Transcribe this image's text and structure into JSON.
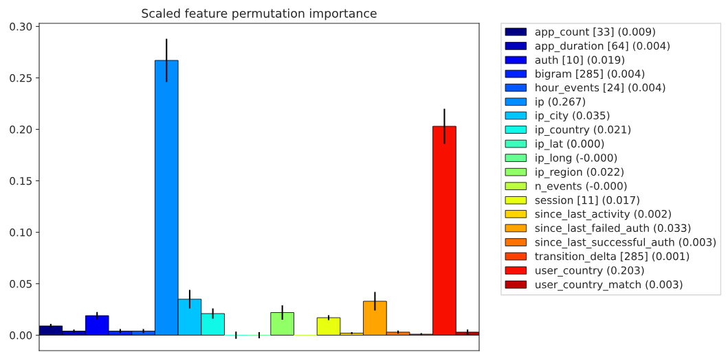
{
  "chart_data": {
    "type": "bar",
    "title": "Scaled feature permutation importance",
    "categories": [
      null,
      null,
      null,
      null,
      null,
      null,
      null,
      null,
      null,
      null,
      null,
      null,
      null,
      null,
      null,
      null,
      null,
      null,
      null
    ],
    "series": [
      {
        "name": "app_count [33] (0.009)",
        "color": "#000080",
        "values": [
          0.009,
          null,
          null,
          null,
          null,
          null,
          null,
          null,
          null,
          null,
          null,
          null,
          null,
          null,
          null,
          null,
          null,
          null,
          null
        ],
        "errors": [
          0.002,
          null,
          null,
          null,
          null,
          null,
          null,
          null,
          null,
          null,
          null,
          null,
          null,
          null,
          null,
          null,
          null,
          null,
          null
        ]
      },
      {
        "name": "app_duration [64] (0.004)",
        "color": "#0000bd",
        "values": [
          null,
          0.004,
          null,
          null,
          null,
          null,
          null,
          null,
          null,
          null,
          null,
          null,
          null,
          null,
          null,
          null,
          null,
          null,
          null
        ],
        "errors": [
          null,
          0.0015,
          null,
          null,
          null,
          null,
          null,
          null,
          null,
          null,
          null,
          null,
          null,
          null,
          null,
          null,
          null,
          null,
          null
        ]
      },
      {
        "name": "auth [10] (0.019)",
        "color": "#0000fa",
        "values": [
          null,
          null,
          0.019,
          null,
          null,
          null,
          null,
          null,
          null,
          null,
          null,
          null,
          null,
          null,
          null,
          null,
          null,
          null,
          null
        ],
        "errors": [
          null,
          null,
          0.0035,
          null,
          null,
          null,
          null,
          null,
          null,
          null,
          null,
          null,
          null,
          null,
          null,
          null,
          null,
          null,
          null
        ]
      },
      {
        "name": "bigram [285] (0.004)",
        "color": "#0022ff",
        "values": [
          null,
          null,
          null,
          0.004,
          null,
          null,
          null,
          null,
          null,
          null,
          null,
          null,
          null,
          null,
          null,
          null,
          null,
          null,
          null
        ],
        "errors": [
          null,
          null,
          null,
          0.002,
          null,
          null,
          null,
          null,
          null,
          null,
          null,
          null,
          null,
          null,
          null,
          null,
          null,
          null,
          null
        ]
      },
      {
        "name": "hour_events [24] (0.004)",
        "color": "#0057ff",
        "values": [
          null,
          null,
          null,
          null,
          0.004,
          null,
          null,
          null,
          null,
          null,
          null,
          null,
          null,
          null,
          null,
          null,
          null,
          null,
          null
        ],
        "errors": [
          null,
          null,
          null,
          null,
          0.002,
          null,
          null,
          null,
          null,
          null,
          null,
          null,
          null,
          null,
          null,
          null,
          null,
          null,
          null
        ]
      },
      {
        "name": "ip (0.267)",
        "color": "#008dff",
        "values": [
          null,
          null,
          null,
          null,
          null,
          0.267,
          null,
          null,
          null,
          null,
          null,
          null,
          null,
          null,
          null,
          null,
          null,
          null,
          null
        ],
        "errors": [
          null,
          null,
          null,
          null,
          null,
          0.021,
          null,
          null,
          null,
          null,
          null,
          null,
          null,
          null,
          null,
          null,
          null,
          null,
          null
        ]
      },
      {
        "name": "ip_city (0.035)",
        "color": "#00c3ff",
        "values": [
          null,
          null,
          null,
          null,
          null,
          null,
          0.035,
          null,
          null,
          null,
          null,
          null,
          null,
          null,
          null,
          null,
          null,
          null,
          null
        ],
        "errors": [
          null,
          null,
          null,
          null,
          null,
          null,
          0.009,
          null,
          null,
          null,
          null,
          null,
          null,
          null,
          null,
          null,
          null,
          null,
          null
        ]
      },
      {
        "name": "ip_country (0.021)",
        "color": "#0ff8e8",
        "values": [
          null,
          null,
          null,
          null,
          null,
          null,
          null,
          0.021,
          null,
          null,
          null,
          null,
          null,
          null,
          null,
          null,
          null,
          null,
          null
        ],
        "errors": [
          null,
          null,
          null,
          null,
          null,
          null,
          null,
          0.005,
          null,
          null,
          null,
          null,
          null,
          null,
          null,
          null,
          null,
          null,
          null
        ]
      },
      {
        "name": "ip_lat (0.000)",
        "color": "#3affbc",
        "values": [
          null,
          null,
          null,
          null,
          null,
          null,
          null,
          null,
          0.0,
          null,
          null,
          null,
          null,
          null,
          null,
          null,
          null,
          null,
          null
        ],
        "errors": [
          null,
          null,
          null,
          null,
          null,
          null,
          null,
          null,
          0.0035,
          null,
          null,
          null,
          null,
          null,
          null,
          null,
          null,
          null,
          null
        ]
      },
      {
        "name": "ip_long (-0.000)",
        "color": "#66ff91",
        "values": [
          null,
          null,
          null,
          null,
          null,
          null,
          null,
          null,
          null,
          -0.0,
          null,
          null,
          null,
          null,
          null,
          null,
          null,
          null,
          null
        ],
        "errors": [
          null,
          null,
          null,
          null,
          null,
          null,
          null,
          null,
          null,
          0.003,
          null,
          null,
          null,
          null,
          null,
          null,
          null,
          null,
          null
        ]
      },
      {
        "name": "ip_region (0.022)",
        "color": "#91ff66",
        "values": [
          null,
          null,
          null,
          null,
          null,
          null,
          null,
          null,
          null,
          null,
          0.022,
          null,
          null,
          null,
          null,
          null,
          null,
          null,
          null
        ],
        "errors": [
          null,
          null,
          null,
          null,
          null,
          null,
          null,
          null,
          null,
          null,
          0.007,
          null,
          null,
          null,
          null,
          null,
          null,
          null,
          null
        ]
      },
      {
        "name": "n_events (-0.000)",
        "color": "#bcff3a",
        "values": [
          null,
          null,
          null,
          null,
          null,
          null,
          null,
          null,
          null,
          null,
          null,
          -0.0,
          null,
          null,
          null,
          null,
          null,
          null,
          null
        ]
      },
      {
        "name": "session [11] (0.017)",
        "color": "#e8ff0f",
        "values": [
          null,
          null,
          null,
          null,
          null,
          null,
          null,
          null,
          null,
          null,
          null,
          null,
          0.017,
          null,
          null,
          null,
          null,
          null,
          null
        ],
        "errors": [
          null,
          null,
          null,
          null,
          null,
          null,
          null,
          null,
          null,
          null,
          null,
          null,
          0.0024,
          null,
          null,
          null,
          null,
          null,
          null
        ]
      },
      {
        "name": "since_last_activity (0.002)",
        "color": "#ffd500",
        "values": [
          null,
          null,
          null,
          null,
          null,
          null,
          null,
          null,
          null,
          null,
          null,
          null,
          null,
          0.002,
          null,
          null,
          null,
          null,
          null
        ],
        "errors": [
          null,
          null,
          null,
          null,
          null,
          null,
          null,
          null,
          null,
          null,
          null,
          null,
          null,
          0.001,
          null,
          null,
          null,
          null,
          null
        ]
      },
      {
        "name": "since_last_failed_auth (0.033)",
        "color": "#ffa400",
        "values": [
          null,
          null,
          null,
          null,
          null,
          null,
          null,
          null,
          null,
          null,
          null,
          null,
          null,
          null,
          0.033,
          null,
          null,
          null,
          null
        ],
        "errors": [
          null,
          null,
          null,
          null,
          null,
          null,
          null,
          null,
          null,
          null,
          null,
          null,
          null,
          null,
          0.009,
          null,
          null,
          null,
          null
        ]
      },
      {
        "name": "since_last_successful_auth (0.003)",
        "color": "#ff7200",
        "values": [
          null,
          null,
          null,
          null,
          null,
          null,
          null,
          null,
          null,
          null,
          null,
          null,
          null,
          null,
          null,
          0.003,
          null,
          null,
          null
        ],
        "errors": [
          null,
          null,
          null,
          null,
          null,
          null,
          null,
          null,
          null,
          null,
          null,
          null,
          null,
          null,
          null,
          0.0015,
          null,
          null,
          null
        ]
      },
      {
        "name": "transition_delta [285] (0.001)",
        "color": "#ff4000",
        "values": [
          null,
          null,
          null,
          null,
          null,
          null,
          null,
          null,
          null,
          null,
          null,
          null,
          null,
          null,
          null,
          null,
          0.001,
          null,
          null
        ],
        "errors": [
          null,
          null,
          null,
          null,
          null,
          null,
          null,
          null,
          null,
          null,
          null,
          null,
          null,
          null,
          null,
          null,
          0.001,
          null,
          null
        ]
      },
      {
        "name": "user_country (0.203)",
        "color": "#f90f00",
        "values": [
          null,
          null,
          null,
          null,
          null,
          null,
          null,
          null,
          null,
          null,
          null,
          null,
          null,
          null,
          null,
          null,
          null,
          0.203,
          null
        ],
        "errors": [
          null,
          null,
          null,
          null,
          null,
          null,
          null,
          null,
          null,
          null,
          null,
          null,
          null,
          null,
          null,
          null,
          null,
          0.017,
          null
        ]
      },
      {
        "name": "user_country_match (0.003)",
        "color": "#bd0000",
        "values": [
          null,
          null,
          null,
          null,
          null,
          null,
          null,
          null,
          null,
          null,
          null,
          null,
          null,
          null,
          null,
          null,
          null,
          null,
          0.003
        ],
        "errors": [
          null,
          null,
          null,
          null,
          null,
          null,
          null,
          null,
          null,
          null,
          null,
          null,
          null,
          null,
          null,
          null,
          null,
          null,
          0.0025
        ]
      }
    ],
    "ylim": [
      -0.015,
      0.303
    ],
    "yticks": [
      {
        "value": 0,
        "label": "0.00"
      },
      {
        "value": 0.05,
        "label": "0.05"
      },
      {
        "value": 0.1,
        "label": "0.10"
      },
      {
        "value": 0.15,
        "label": "0.15"
      },
      {
        "value": 0.2,
        "label": "0.20"
      },
      {
        "value": 0.25,
        "label": "0.25"
      },
      {
        "value": 0.3,
        "label": "0.30"
      }
    ],
    "tick_labels": "y",
    "legend": "right",
    "grid": false
  }
}
